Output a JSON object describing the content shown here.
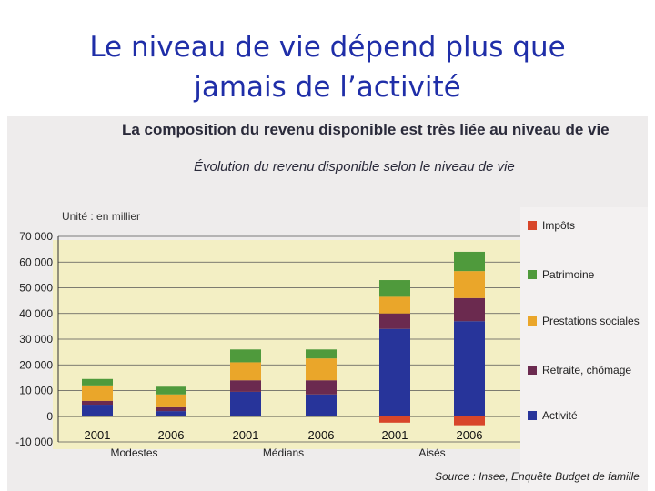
{
  "slide": {
    "title_line1": "Le niveau de vie dépend plus que",
    "title_line2": "jamais de l’activité"
  },
  "chart_data": {
    "type": "bar",
    "stacked": true,
    "title": "La composition du revenu disponible est très liée au niveau de vie",
    "subtitle": "Évolution du revenu disponible selon le niveau de vie",
    "unit": "Unité : en millier",
    "source": "Source : Insee, Enquête Budget de famille",
    "categories": [
      "2001",
      "2006",
      "2001",
      "2006",
      "2001",
      "2006"
    ],
    "groups": [
      {
        "label": "Modestes",
        "categories": [
          0,
          1
        ]
      },
      {
        "label": "Médians",
        "categories": [
          2,
          3
        ]
      },
      {
        "label": "Aisés",
        "categories": [
          4,
          5
        ]
      }
    ],
    "ylim": [
      -10000,
      70000
    ],
    "yticks": [
      -10000,
      0,
      10000,
      20000,
      30000,
      40000,
      50000,
      60000,
      70000
    ],
    "ytick_labels": [
      "-10 000",
      "0",
      "10 000",
      "20 000",
      "30 000",
      "40 000",
      "50 000",
      "60 000",
      "70 000"
    ],
    "series": [
      {
        "name": "Activité",
        "color": "#27349a",
        "values": [
          4500,
          2000,
          9500,
          8500,
          34000,
          37000
        ]
      },
      {
        "name": "Retraite, chômage",
        "color": "#6b2a4f",
        "values": [
          1500,
          1500,
          4500,
          5500,
          6000,
          9000
        ]
      },
      {
        "name": "Prestations sociales",
        "color": "#eaa62a",
        "values": [
          6000,
          5000,
          7000,
          8500,
          6500,
          10500
        ]
      },
      {
        "name": "Patrimoine",
        "color": "#4f9a3c",
        "values": [
          2500,
          3000,
          5000,
          3500,
          6500,
          7500
        ]
      },
      {
        "name": "Impôts",
        "color": "#d8462a",
        "values": [
          0,
          0,
          0,
          0,
          -2500,
          -3500
        ]
      }
    ],
    "legend_order": [
      "Impôts",
      "Patrimoine",
      "Prestations sociales",
      "Retraite, chômage",
      "Activité"
    ]
  }
}
